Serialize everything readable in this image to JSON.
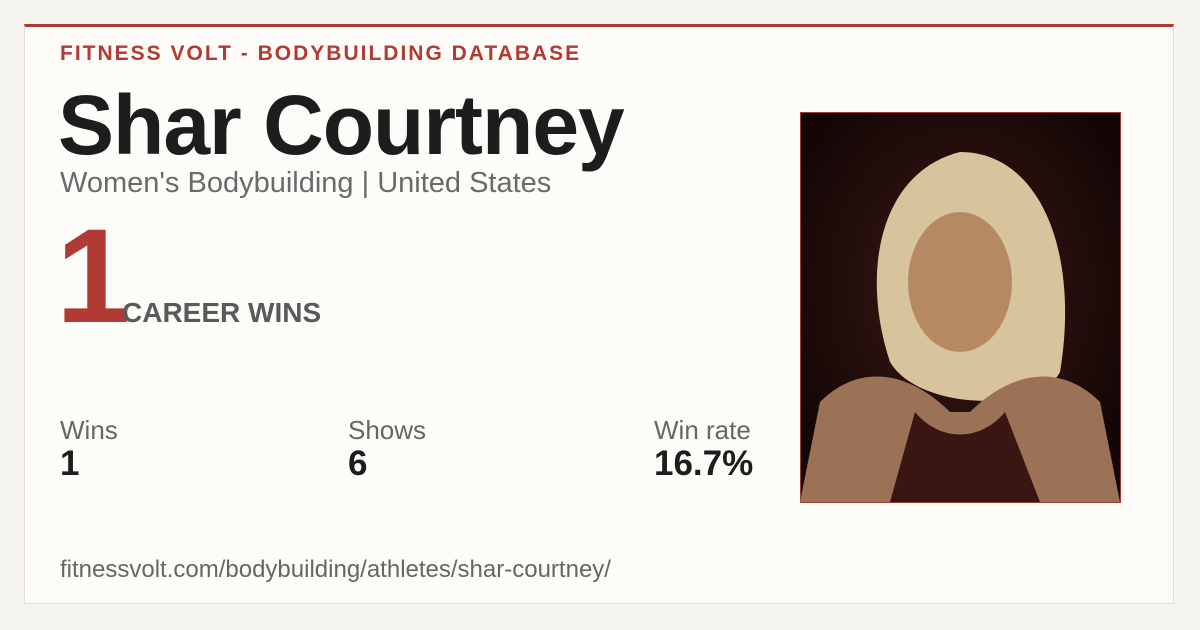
{
  "header": {
    "brand": "FITNESS VOLT - BODYBUILDING DATABASE",
    "name": "Shar Courtney",
    "subtitle": "Women's Bodybuilding | United States"
  },
  "highlight": {
    "value": 1,
    "label": "CAREER WINS"
  },
  "stats": [
    {
      "label": "Wins",
      "value": 1
    },
    {
      "label": "Shows",
      "value": 6
    },
    {
      "label": "Win rate",
      "value": "16.7%"
    }
  ],
  "footer": {
    "url": "fitnessvolt.com/bodybuilding/athletes/shar-courtney/"
  }
}
